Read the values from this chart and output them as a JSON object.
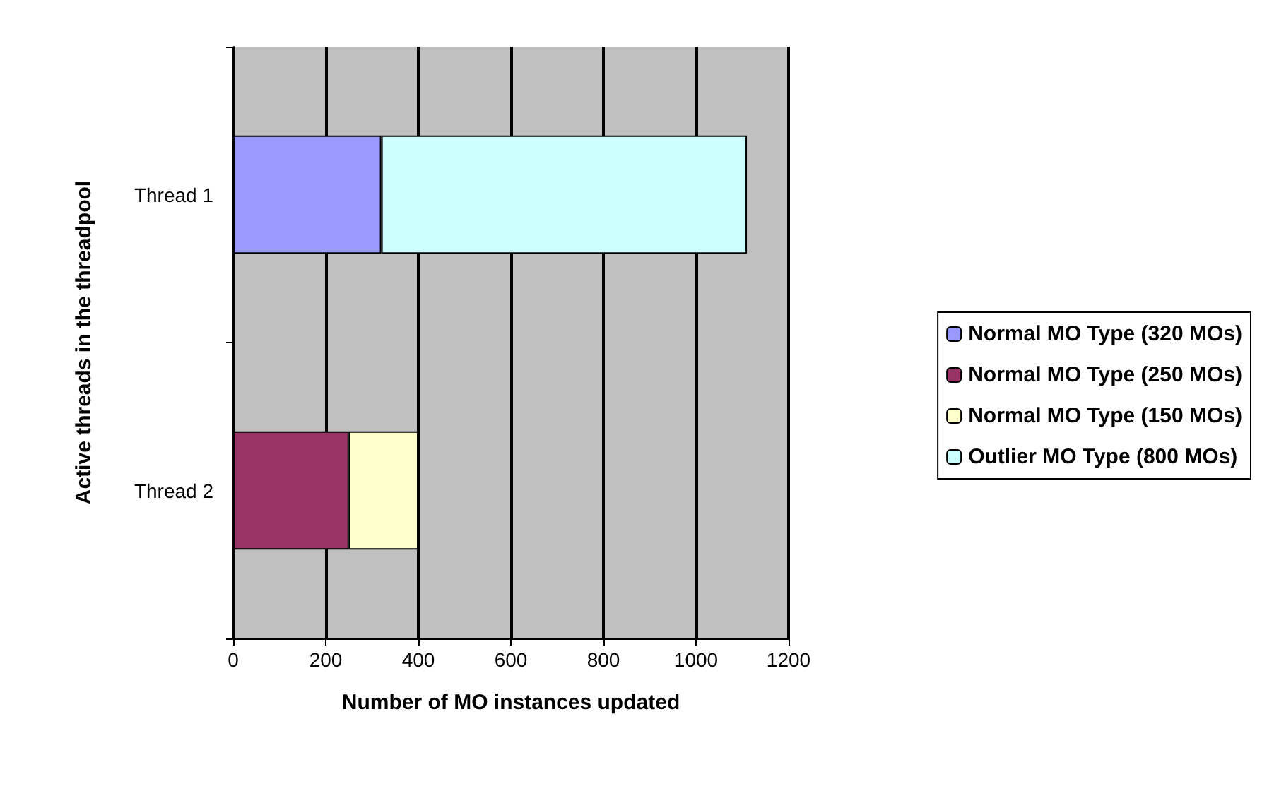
{
  "chart_data": {
    "type": "bar",
    "orientation": "horizontal",
    "stacked": true,
    "xlabel": "Number of MO instances updated",
    "ylabel": "Active threads in the threadpool",
    "categories": [
      "Thread 1",
      "Thread 2"
    ],
    "series": [
      {
        "name": "Normal MO Type (320 MOs)",
        "color": "#9999ff",
        "values": [
          320,
          null
        ]
      },
      {
        "name": "Normal MO Type (250 MOs)",
        "color": "#993366",
        "values": [
          null,
          250
        ]
      },
      {
        "name": "Normal MO Type (150 MOs)",
        "color": "#ffffcc",
        "values": [
          null,
          150
        ]
      },
      {
        "name": "Outlier MO Type (800 MOs)",
        "color": "#ccffff",
        "values": [
          790,
          null
        ]
      }
    ],
    "xlim": [
      0,
      1200
    ],
    "xticks": [
      0,
      200,
      400,
      600,
      800,
      1000,
      1200
    ],
    "grid": "x",
    "legend": "right"
  }
}
